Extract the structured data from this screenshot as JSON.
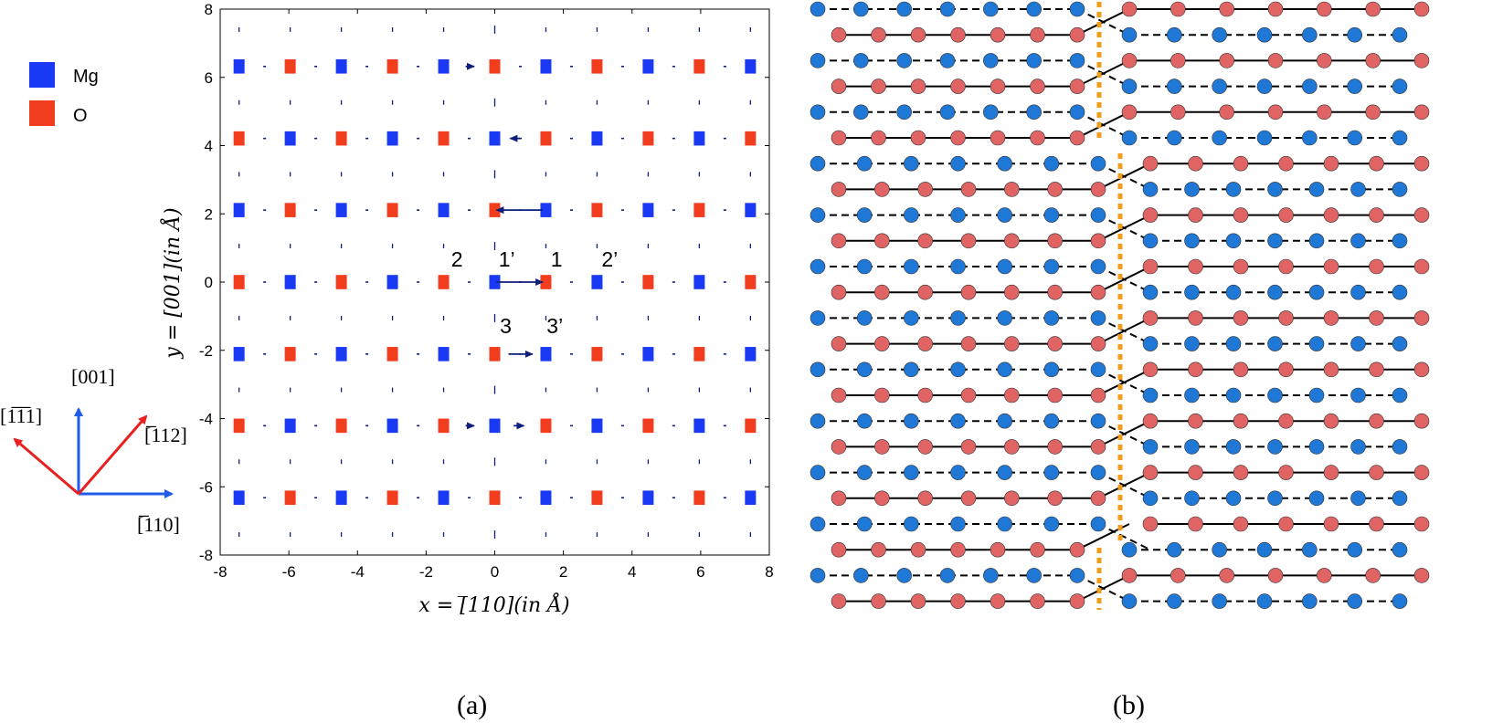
{
  "colors": {
    "mg": "#1a39f5",
    "o": "#f23c1e",
    "arrow": "#0d1f7a",
    "axis_blue": "#1f5de8",
    "axis_red": "#e82020",
    "atom_blue": "#1f78d6",
    "atom_red": "#e06464",
    "boundary": "#f39c1b"
  },
  "legend": [
    {
      "label": "Mg",
      "color": "#1a39f5"
    },
    {
      "label": "O",
      "color": "#f23c1e"
    }
  ],
  "directions": {
    "up": "[001]",
    "left": "[1̅1̅1]",
    "right": "[̅112]",
    "down_right": "[̅110]"
  },
  "panel_labels": {
    "a": "(a)",
    "b": "(b)"
  },
  "chart_data": {
    "type": "scatter",
    "x_axis": {
      "label": "x = [̅110](in Å)",
      "range": [
        -8,
        8
      ],
      "ticks": [
        "-8",
        "-6",
        "-4",
        "-2",
        "0",
        "2",
        "4",
        "6",
        "8"
      ]
    },
    "y_axis": {
      "label": "y = [001](in Å)",
      "range": [
        -8,
        8
      ],
      "ticks": [
        "-8",
        "-6",
        "-4",
        "-2",
        "0",
        "2",
        "4",
        "6",
        "8"
      ]
    },
    "grid": false,
    "columns_x": [
      -7.45,
      -5.96,
      -4.47,
      -2.98,
      -1.49,
      0,
      1.49,
      2.98,
      4.47,
      5.96,
      7.45
    ],
    "rows": [
      {
        "y": 6.32,
        "first": "Mg"
      },
      {
        "y": 4.21,
        "first": "O"
      },
      {
        "y": 2.11,
        "first": "Mg"
      },
      {
        "y": 0,
        "first": "O"
      },
      {
        "y": -2.11,
        "first": "Mg"
      },
      {
        "y": -4.21,
        "first": "O"
      },
      {
        "y": -6.32,
        "first": "Mg"
      }
    ],
    "displacement_arrows": [
      {
        "x0": 1.4,
        "y0": 2.11,
        "x1": 0.05,
        "y1": 2.11
      },
      {
        "x0": 0.05,
        "y0": 0,
        "x1": 1.4,
        "y1": 0
      },
      {
        "x0": 0.4,
        "y0": -2.11,
        "x1": 1.1,
        "y1": -2.11
      },
      {
        "x0": 0.75,
        "y0": 4.21,
        "x1": 0.45,
        "y1": 4.21
      },
      {
        "x0": -0.85,
        "y0": -4.21,
        "x1": -0.6,
        "y1": -4.21
      },
      {
        "x0": 0.55,
        "y0": -4.21,
        "x1": 0.85,
        "y1": -4.21
      },
      {
        "x0": -0.85,
        "y0": 6.32,
        "x1": -0.6,
        "y1": 6.32
      }
    ],
    "annotations": [
      {
        "text": "2",
        "x": -1.1,
        "y": 0.45
      },
      {
        "text": "1’",
        "x": 0.35,
        "y": 0.45
      },
      {
        "text": "1",
        "x": 1.8,
        "y": 0.45
      },
      {
        "text": "2’",
        "x": 3.35,
        "y": 0.45
      },
      {
        "text": "3",
        "x": 0.32,
        "y": -1.5
      },
      {
        "text": "3’",
        "x": 1.75,
        "y": -1.5
      }
    ]
  },
  "panel_b": {
    "rows": 24,
    "atoms_per_side": 7,
    "boundary_shift_rows": [
      0,
      1,
      2,
      3,
      4,
      5,
      21,
      22,
      23
    ]
  }
}
